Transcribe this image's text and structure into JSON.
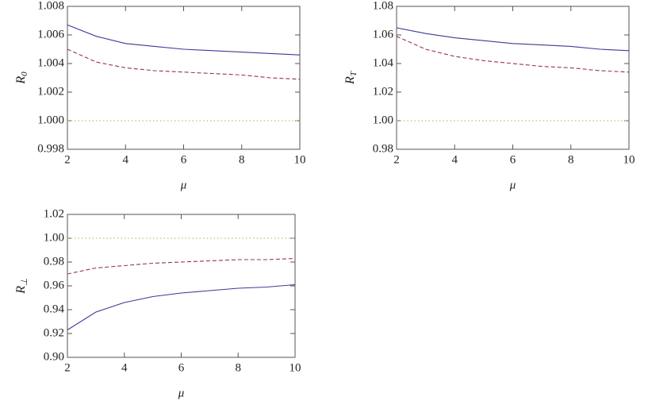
{
  "chart_data": [
    {
      "type": "line",
      "xlabel": "μ",
      "ylabel": "R",
      "ylabel_sub": "0",
      "x": [
        2,
        3,
        4,
        5,
        6,
        7,
        8,
        9,
        10
      ],
      "xlim": [
        2,
        10
      ],
      "xticks": [
        2,
        4,
        6,
        8,
        10
      ],
      "ylim": [
        0.998,
        1.008
      ],
      "yticks": [
        0.998,
        {
          "value": 1,
          "label": "1.000"
        },
        1.002,
        1.004,
        1.006,
        1.008
      ],
      "series": [
        {
          "color": "#3b3b9a",
          "dash": "solid",
          "values": [
            1.0067,
            1.0059,
            1.0054,
            1.0052,
            1.005,
            1.0049,
            1.0048,
            1.0047,
            1.0046
          ]
        },
        {
          "color": "#993355",
          "dash": "dashed",
          "values": [
            1.005,
            1.0041,
            1.0037,
            1.0035,
            1.0034,
            1.0033,
            1.0032,
            1.003,
            1.0029
          ]
        },
        {
          "color": "#b5b04a",
          "dash": "dotted",
          "values": [
            1,
            1,
            1,
            1,
            1,
            1,
            1,
            1,
            1
          ]
        }
      ]
    },
    {
      "type": "line",
      "xlabel": "μ",
      "ylabel": "R",
      "ylabel_sub": "T",
      "x": [
        2,
        3,
        4,
        5,
        6,
        7,
        8,
        9,
        10
      ],
      "xlim": [
        2,
        10
      ],
      "xticks": [
        2,
        4,
        6,
        8,
        10
      ],
      "ylim": [
        0.98,
        1.08
      ],
      "yticks": [
        0.98,
        {
          "value": 1,
          "label": "1.00"
        },
        1.02,
        1.04,
        1.06,
        1.08
      ],
      "series": [
        {
          "color": "#3b3b9a",
          "dash": "solid",
          "values": [
            1.065,
            1.061,
            1.058,
            1.056,
            1.054,
            1.053,
            1.052,
            1.05,
            1.049
          ]
        },
        {
          "color": "#993355",
          "dash": "dashed",
          "values": [
            1.059,
            1.05,
            1.045,
            1.042,
            1.04,
            1.038,
            1.037,
            1.035,
            1.034
          ]
        },
        {
          "color": "#b5b04a",
          "dash": "dotted",
          "values": [
            1,
            1,
            1,
            1,
            1,
            1,
            1,
            1,
            1
          ]
        }
      ]
    },
    {
      "type": "line",
      "xlabel": "μ",
      "ylabel": "R",
      "ylabel_sub": "⊥",
      "x": [
        2,
        3,
        4,
        5,
        6,
        7,
        8,
        9,
        10
      ],
      "xlim": [
        2,
        10
      ],
      "xticks": [
        2,
        4,
        6,
        8,
        10
      ],
      "ylim": [
        0.9,
        1.02
      ],
      "yticks": [
        {
          "value": 0.9,
          "label": "0.90"
        },
        0.92,
        0.94,
        0.96,
        0.98,
        {
          "value": 1,
          "label": "1.00"
        },
        1.02
      ],
      "series": [
        {
          "color": "#3b3b9a",
          "dash": "solid",
          "values": [
            0.923,
            0.938,
            0.946,
            0.951,
            0.954,
            0.956,
            0.958,
            0.959,
            0.961
          ]
        },
        {
          "color": "#993355",
          "dash": "dashed",
          "values": [
            0.97,
            0.975,
            0.977,
            0.979,
            0.98,
            0.981,
            0.982,
            0.982,
            0.983
          ]
        },
        {
          "color": "#b5b04a",
          "dash": "dotted",
          "values": [
            1,
            1,
            1,
            1,
            1,
            1,
            1,
            1,
            1
          ]
        }
      ]
    }
  ]
}
